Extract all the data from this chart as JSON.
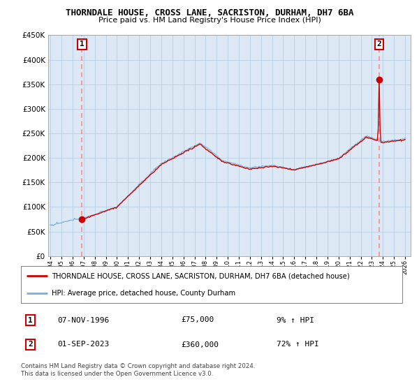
{
  "title": "THORNDALE HOUSE, CROSS LANE, SACRISTON, DURHAM, DH7 6BA",
  "subtitle": "Price paid vs. HM Land Registry's House Price Index (HPI)",
  "ylim": [
    0,
    450000
  ],
  "yticks": [
    0,
    50000,
    100000,
    150000,
    200000,
    250000,
    300000,
    350000,
    400000,
    450000
  ],
  "ytick_labels": [
    "£0",
    "£50K",
    "£100K",
    "£150K",
    "£200K",
    "£250K",
    "£300K",
    "£350K",
    "£400K",
    "£450K"
  ],
  "xlim_start": 1993.8,
  "xlim_end": 2026.5,
  "sale1_x": 1996.85,
  "sale1_y": 75000,
  "sale1_label": "1",
  "sale1_date": "07-NOV-1996",
  "sale1_price": "£75,000",
  "sale1_hpi": "9% ↑ HPI",
  "sale2_x": 2023.67,
  "sale2_y": 360000,
  "sale2_label": "2",
  "sale2_date": "01-SEP-2023",
  "sale2_price": "£360,000",
  "sale2_hpi": "72% ↑ HPI",
  "line_color_property": "#cc0000",
  "line_color_hpi": "#7bafd4",
  "bg_color": "#dce9f5",
  "grid_color": "#b0c8e0",
  "background_color": "#ffffff",
  "legend_label_property": "THORNDALE HOUSE, CROSS LANE, SACRISTON, DURHAM, DH7 6BA (detached house)",
  "legend_label_hpi": "HPI: Average price, detached house, County Durham",
  "footer1": "Contains HM Land Registry data © Crown copyright and database right 2024.",
  "footer2": "This data is licensed under the Open Government Licence v3.0."
}
